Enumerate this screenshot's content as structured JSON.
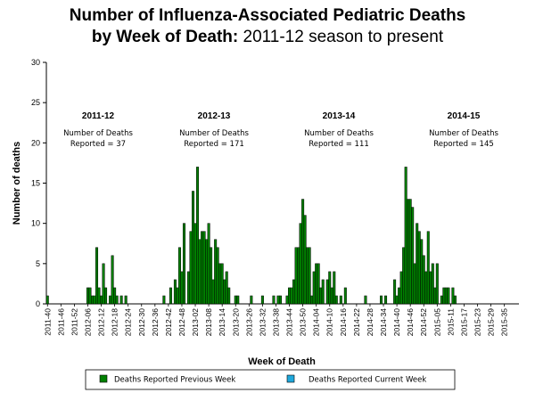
{
  "title": {
    "bold_part": "Number of Influenza-Associated Pediatric Deaths",
    "line2_bold": "by Week of Death:",
    "line2_normal": " 2011-12 season to present"
  },
  "chart_data": {
    "type": "bar",
    "xlabel": "Week of Death",
    "ylabel": "Number of deaths",
    "ylim": [
      0,
      30
    ],
    "yticks": [
      0,
      5,
      10,
      15,
      20,
      25,
      30
    ],
    "x_tick_labels": [
      "2011-40",
      "2011-46",
      "2011-52",
      "2012-06",
      "2012-12",
      "2012-18",
      "2012-24",
      "2012-30",
      "2012-36",
      "2012-42",
      "2012-48",
      "2013-02",
      "2013-08",
      "2013-14",
      "2013-20",
      "2013-26",
      "2013-32",
      "2013-38",
      "2013-44",
      "2013-50",
      "2014-04",
      "2014-10",
      "2014-16",
      "2014-22",
      "2014-28",
      "2014-34",
      "2014-40",
      "2014-46",
      "2014-52",
      "2015-05",
      "2015-11",
      "2015-17",
      "2015-23",
      "2015-29",
      "2015-35"
    ],
    "bar_colors": {
      "previous": "#008000",
      "current": "#1fa8dc"
    },
    "series": [
      {
        "name": "Deaths Reported Previous Week",
        "values": [
          1,
          0,
          0,
          0,
          0,
          0,
          0,
          0,
          0,
          0,
          0,
          0,
          0,
          0,
          0,
          0,
          0,
          0,
          2,
          2,
          1,
          1,
          7,
          2,
          1,
          5,
          2,
          0,
          1,
          6,
          2,
          1,
          0,
          1,
          0,
          1,
          0,
          0,
          0,
          0,
          0,
          0,
          0,
          0,
          0,
          0,
          0,
          0,
          0,
          0,
          0,
          0,
          1,
          0,
          0,
          2,
          0,
          3,
          2,
          7,
          4,
          10,
          0,
          4,
          9,
          14,
          10,
          17,
          8,
          9,
          9,
          8,
          10,
          7,
          3,
          8,
          7,
          5,
          5,
          3,
          4,
          2,
          0,
          0,
          1,
          1,
          0,
          0,
          0,
          0,
          0,
          1,
          0,
          0,
          0,
          0,
          1,
          0,
          0,
          0,
          0,
          1,
          0,
          1,
          1,
          0,
          0,
          1,
          2,
          2,
          3,
          7,
          7,
          10,
          13,
          11,
          7,
          7,
          1,
          4,
          5,
          5,
          2,
          3,
          0,
          3,
          4,
          2,
          4,
          1,
          0,
          1,
          0,
          2,
          0,
          0,
          0,
          0,
          0,
          0,
          0,
          0,
          1,
          0,
          0,
          0,
          0,
          0,
          0,
          1,
          0,
          1,
          0,
          0,
          0,
          3,
          1,
          2,
          4,
          7,
          17,
          13,
          13,
          12,
          5,
          10,
          9,
          8,
          6,
          4,
          9,
          4,
          5,
          2,
          5,
          0,
          1,
          2,
          2,
          2,
          0,
          2,
          1
        ]
      },
      {
        "name": "Deaths Reported Current Week",
        "values": []
      }
    ],
    "annotations": [
      {
        "season": "2011-12",
        "line1": "Number of Deaths",
        "line2": "Reported = 37"
      },
      {
        "season": "2012-13",
        "line1": "Number of Deaths",
        "line2": "Reported = 171"
      },
      {
        "season": "2013-14",
        "line1": "Number of Deaths",
        "line2": "Reported = 111"
      },
      {
        "season": "2014-15",
        "line1": "Number of Deaths",
        "line2": "Reported = 145"
      }
    ],
    "legend": {
      "placement": "bottom"
    }
  }
}
